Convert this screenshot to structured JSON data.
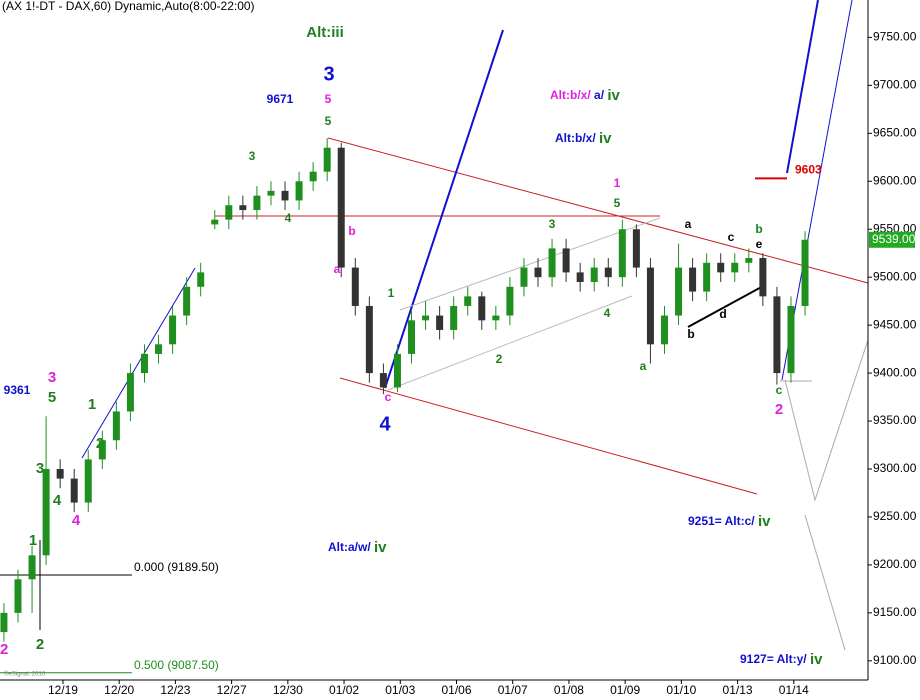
{
  "chart_data": {
    "type": "candlestick",
    "title": "(AX 1!-DT - DAX,60) Dynamic,Auto(8:00-22:00)",
    "x": [
      -0.05,
      0.2,
      0.45,
      0.7,
      0.95,
      1.2,
      1.45,
      1.7,
      1.95,
      2.2,
      2.45,
      2.7,
      2.95,
      3.2,
      3.45,
      3.7,
      3.95,
      4.2,
      4.45,
      4.7,
      4.95,
      5.2,
      5.45,
      5.7,
      5.95,
      6.2,
      6.45,
      6.7,
      6.95,
      7.2,
      7.45,
      7.7,
      7.95,
      8.2,
      8.45,
      8.7,
      8.95,
      9.2,
      9.45,
      9.7,
      9.95,
      10.2,
      10.45,
      10.7,
      10.95,
      11.2,
      11.45,
      11.7,
      11.95,
      12.2,
      12.45,
      12.7,
      12.95,
      13.2,
      13.45,
      13.7,
      13.95,
      14.2
    ],
    "open": [
      9130,
      9150,
      9185,
      9210,
      9300,
      9290,
      9265,
      9310,
      9330,
      9360,
      9400,
      9420,
      9430,
      9460,
      9490,
      9555,
      9560,
      9575,
      9570,
      9585,
      9590,
      9580,
      9600,
      9610,
      9635,
      9510,
      9470,
      9400,
      9385,
      9420,
      9455,
      9460,
      9445,
      9470,
      9480,
      9455,
      9460,
      9490,
      9510,
      9500,
      9530,
      9505,
      9495,
      9510,
      9500,
      9550,
      9510,
      9430,
      9460,
      9510,
      9485,
      9515,
      9505,
      9515,
      9520,
      9480,
      9400,
      9470
    ],
    "high": [
      9160,
      9195,
      9220,
      9355,
      9310,
      9300,
      9320,
      9340,
      9370,
      9410,
      9430,
      9440,
      9470,
      9500,
      9515,
      9570,
      9585,
      9585,
      9595,
      9600,
      9600,
      9610,
      9620,
      9645,
      9640,
      9520,
      9480,
      9410,
      9430,
      9465,
      9475,
      9470,
      9480,
      9490,
      9485,
      9470,
      9500,
      9520,
      9520,
      9540,
      9540,
      9515,
      9520,
      9520,
      9560,
      9555,
      9520,
      9470,
      9535,
      9520,
      9525,
      9525,
      9525,
      9530,
      9525,
      9490,
      9480,
      9548
    ],
    "low": [
      9120,
      9140,
      9150,
      9200,
      9280,
      9255,
      9255,
      9300,
      9320,
      9350,
      9390,
      9410,
      9420,
      9450,
      9480,
      9550,
      9550,
      9560,
      9560,
      9575,
      9570,
      9570,
      9590,
      9600,
      9500,
      9460,
      9390,
      9378,
      9380,
      9410,
      9445,
      9435,
      9435,
      9460,
      9445,
      9445,
      9450,
      9480,
      9490,
      9490,
      9495,
      9485,
      9485,
      9490,
      9490,
      9500,
      9410,
      9420,
      9450,
      9475,
      9475,
      9495,
      9495,
      9505,
      9470,
      9388,
      9390,
      9460
    ],
    "close": [
      9150,
      9185,
      9210,
      9300,
      9290,
      9265,
      9310,
      9330,
      9360,
      9400,
      9420,
      9430,
      9460,
      9490,
      9505,
      9560,
      9575,
      9570,
      9585,
      9590,
      9580,
      9600,
      9610,
      9635,
      9510,
      9470,
      9400,
      9385,
      9420,
      9455,
      9460,
      9445,
      9470,
      9480,
      9455,
      9460,
      9490,
      9510,
      9500,
      9530,
      9505,
      9495,
      9510,
      9500,
      9550,
      9510,
      9430,
      9460,
      9510,
      9485,
      9515,
      9505,
      9515,
      9520,
      9480,
      9400,
      9470,
      9539
    ],
    "up_color": "#1f8f1f",
    "down_color": "#333333",
    "xlim": [
      -0.12,
      15.32
    ],
    "ylim": [
      9080,
      9789
    ],
    "xticks": [
      {
        "value": 1,
        "label": "12/19"
      },
      {
        "value": 2,
        "label": "12/20"
      },
      {
        "value": 3,
        "label": "12/23"
      },
      {
        "value": 4,
        "label": "12/27"
      },
      {
        "value": 5,
        "label": "12/30"
      },
      {
        "value": 6,
        "label": "01/02"
      },
      {
        "value": 7,
        "label": "01/03"
      },
      {
        "value": 8,
        "label": "01/06"
      },
      {
        "value": 9,
        "label": "01/07"
      },
      {
        "value": 10,
        "label": "01/08"
      },
      {
        "value": 11,
        "label": "01/09"
      },
      {
        "value": 12,
        "label": "01/10"
      },
      {
        "value": 13,
        "label": "01/13"
      },
      {
        "value": 14,
        "label": "01/14"
      }
    ],
    "yticks": [
      {
        "value": 9100,
        "label": "9100.00"
      },
      {
        "value": 9150,
        "label": "9150.00"
      },
      {
        "value": 9200,
        "label": "9200.00"
      },
      {
        "value": 9250,
        "label": "9250.00"
      },
      {
        "value": 9300,
        "label": "9300.00"
      },
      {
        "value": 9350,
        "label": "9350.00"
      },
      {
        "value": 9400,
        "label": "9400.00"
      },
      {
        "value": 9450,
        "label": "9450.00"
      },
      {
        "value": 9500,
        "label": "9500.00"
      },
      {
        "value": 9550,
        "label": "9550.00"
      },
      {
        "value": 9600,
        "label": "9600.00"
      },
      {
        "value": 9650,
        "label": "9650.00"
      },
      {
        "value": 9700,
        "label": "9700.00"
      },
      {
        "value": 9750,
        "label": "9750.00"
      }
    ],
    "fib_levels": [
      {
        "value": 9189.5,
        "label": "0.000 (9189.50)",
        "color": "#000000"
      },
      {
        "value": 9087.5,
        "label": "0.500 (9087.50)",
        "color": "#1f8f1f"
      }
    ],
    "target": {
      "value": 9603,
      "label": "9603",
      "color": "#dd0000"
    },
    "last_price": {
      "value": 9539,
      "label": "9539.00",
      "color": "#22aa22"
    },
    "annotations": [
      "Alt:iii",
      "3",
      "9671",
      "5",
      "5",
      "3",
      "4",
      "b",
      "a",
      "1",
      "2",
      "c",
      "4",
      "Alt:b/x/",
      "a/",
      "iv",
      "Alt:b/x/",
      "iv",
      "1",
      "5",
      "3",
      "4",
      "a",
      "a",
      "c",
      "b",
      "e",
      "b",
      "d",
      "c",
      "2",
      "9361",
      "3",
      "5",
      "1",
      "2",
      "3",
      "4",
      "1",
      "4",
      "2",
      "9251= Alt:c/",
      "iv",
      "Alt:a/w/",
      "iv",
      "9127= Alt:y/",
      "iv",
      "2",
      "©eSignal, 2010"
    ]
  }
}
